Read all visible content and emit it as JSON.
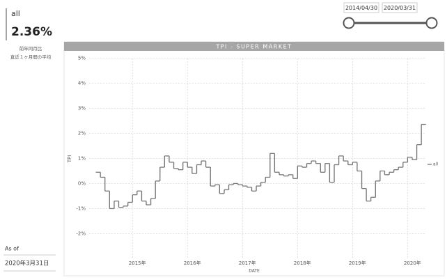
{
  "kpi": {
    "label": "all",
    "value": "2.36%",
    "note": [
      "前年同月比",
      "直近１ヶ月間の平均"
    ]
  },
  "as_of": {
    "label": "As of",
    "date": "2020年3月31日"
  },
  "slicer": {
    "start": "2014/04/30",
    "end": "2020/03/31"
  },
  "chart_data": {
    "type": "step",
    "title": "TPI - SUPER MARKET",
    "x_label": "DATE",
    "y_label": "TPI",
    "x": [
      2014.333,
      2014.417,
      2014.5,
      2014.583,
      2014.667,
      2014.75,
      2014.833,
      2014.917,
      2015.0,
      2015.083,
      2015.167,
      2015.25,
      2015.333,
      2015.417,
      2015.5,
      2015.583,
      2015.667,
      2015.75,
      2015.833,
      2015.917,
      2016.0,
      2016.083,
      2016.167,
      2016.25,
      2016.333,
      2016.417,
      2016.5,
      2016.583,
      2016.667,
      2016.75,
      2016.833,
      2016.917,
      2017.0,
      2017.083,
      2017.167,
      2017.25,
      2017.333,
      2017.417,
      2017.5,
      2017.583,
      2017.667,
      2017.75,
      2017.833,
      2017.917,
      2018.0,
      2018.083,
      2018.167,
      2018.25,
      2018.333,
      2018.417,
      2018.5,
      2018.583,
      2018.667,
      2018.75,
      2018.833,
      2018.917,
      2019.0,
      2019.083,
      2019.167,
      2019.25,
      2019.333,
      2019.417,
      2019.5,
      2019.583,
      2019.667,
      2019.75,
      2019.833,
      2019.917,
      2020.0,
      2020.083,
      2020.167,
      2020.25
    ],
    "series": [
      {
        "name": "all",
        "color": "#777777",
        "values": [
          0.45,
          0.25,
          -0.3,
          -1.0,
          -0.7,
          -0.95,
          -0.9,
          -0.75,
          -0.45,
          -0.3,
          -0.7,
          -0.85,
          -0.6,
          0.1,
          0.65,
          1.1,
          0.85,
          0.6,
          0.55,
          0.85,
          0.65,
          0.4,
          0.75,
          0.9,
          0.65,
          -0.1,
          -0.05,
          -0.4,
          -0.25,
          -0.05,
          0.0,
          -0.05,
          -0.1,
          -0.15,
          -0.3,
          -0.1,
          0.05,
          0.25,
          1.2,
          0.45,
          0.35,
          0.3,
          0.35,
          0.2,
          0.7,
          0.65,
          0.8,
          0.9,
          0.8,
          0.45,
          0.8,
          0.05,
          0.75,
          1.1,
          0.9,
          0.75,
          0.85,
          0.5,
          -0.2,
          -0.7,
          -0.55,
          0.1,
          0.5,
          0.35,
          0.45,
          0.55,
          0.65,
          0.85,
          1.05,
          0.95,
          1.55,
          2.36
        ]
      }
    ],
    "xlim": [
      2014.25,
      2020.4
    ],
    "xticks": [
      {
        "value": 2015,
        "label": "2015年"
      },
      {
        "value": 2016,
        "label": "2016年"
      },
      {
        "value": 2017,
        "label": "2017年"
      },
      {
        "value": 2018,
        "label": "2018年"
      },
      {
        "value": 2019,
        "label": "2019年"
      },
      {
        "value": 2020,
        "label": "2020年"
      }
    ],
    "ylim": [
      -2.6,
      5.1
    ],
    "yticks": [
      {
        "value": 5,
        "label": "5%"
      },
      {
        "value": 4,
        "label": "4%"
      },
      {
        "value": 3,
        "label": "3%"
      },
      {
        "value": 2,
        "label": "2%"
      },
      {
        "value": 1,
        "label": "1%"
      },
      {
        "value": 0,
        "label": "0%"
      },
      {
        "value": -1,
        "label": "-1%"
      },
      {
        "value": -2,
        "label": "-2%"
      }
    ],
    "grid": true,
    "legend": "right"
  }
}
